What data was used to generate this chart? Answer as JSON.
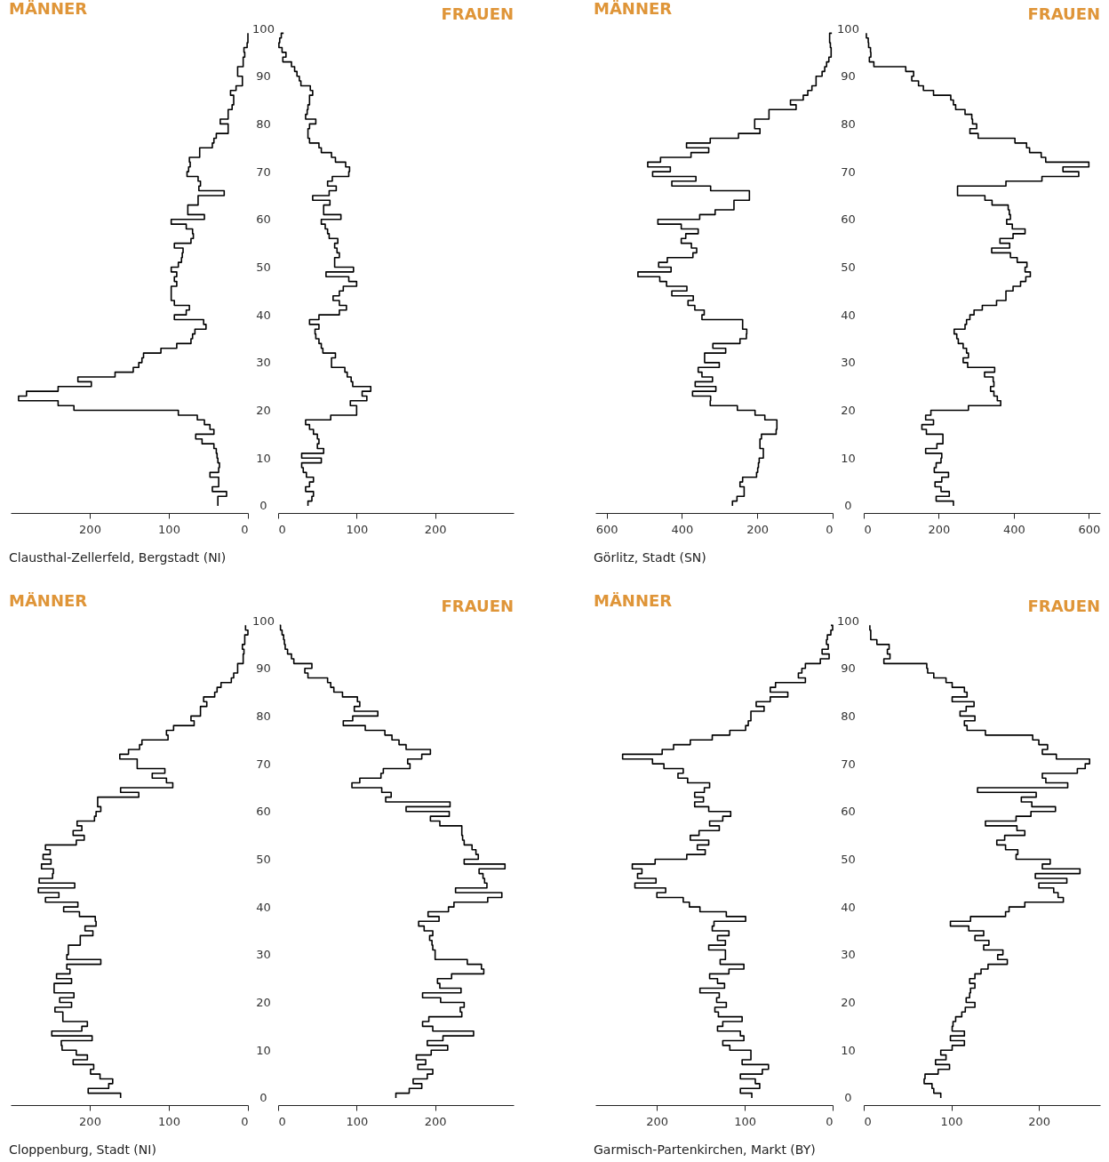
{
  "chart_data": [
    {
      "type": "step",
      "orientation": "horizontal",
      "title": "MÄNNER",
      "color": "#000000",
      "xlim": [
        300,
        0
      ],
      "xticks": [
        0,
        100,
        200
      ],
      "ylim": [
        -1.5,
        100
      ],
      "yticks": [
        0,
        10,
        20,
        30,
        40,
        50,
        60,
        70,
        80,
        90,
        100
      ],
      "annotations": [
        "Clausthal-Zellerfeld, Bergstadt (NI)"
      ],
      "x": [
        0,
        1,
        2,
        3,
        4,
        5,
        6,
        7,
        8,
        9,
        10,
        11,
        12,
        13,
        14,
        15,
        16,
        17,
        18,
        19,
        20,
        21,
        22,
        23,
        24,
        25,
        26,
        27,
        28,
        29,
        30,
        31,
        32,
        33,
        34,
        35,
        36,
        37,
        38,
        39,
        40,
        41,
        42,
        43,
        44,
        45,
        46,
        47,
        48,
        49,
        50,
        51,
        52,
        53,
        54,
        55,
        56,
        57,
        58,
        59,
        60,
        61,
        62,
        63,
        64,
        65,
        66,
        67,
        68,
        69,
        70,
        71,
        72,
        73,
        74,
        75,
        76,
        77,
        78,
        79,
        80,
        81,
        82,
        83,
        84,
        85,
        86,
        87,
        88,
        89,
        90,
        91,
        92,
        93,
        94,
        95,
        96,
        97,
        98,
        99
      ],
      "values": [
        38,
        38,
        27,
        45,
        37,
        37,
        48,
        37,
        36,
        38,
        39,
        40,
        43,
        58,
        66,
        43,
        48,
        55,
        64,
        88,
        220,
        240,
        290,
        280,
        240,
        198,
        215,
        168,
        145,
        138,
        134,
        132,
        110,
        90,
        72,
        70,
        67,
        53,
        56,
        93,
        78,
        74,
        93,
        97,
        97,
        97,
        90,
        93,
        90,
        97,
        88,
        84,
        83,
        82,
        93,
        72,
        69,
        70,
        78,
        97,
        55,
        76,
        76,
        63,
        63,
        30,
        62,
        60,
        63,
        77,
        75,
        73,
        74,
        61,
        61,
        45,
        43,
        40,
        25,
        25,
        35,
        25,
        25,
        20,
        18,
        18,
        22,
        15,
        7,
        7,
        13,
        13,
        6,
        6,
        4,
        5,
        1,
        0,
        0,
        0
      ]
    },
    {
      "type": "step",
      "orientation": "horizontal",
      "title": "FRAUEN",
      "color": "#000000",
      "xlim": [
        0,
        300
      ],
      "xticks": [
        0,
        100,
        200
      ],
      "ylim": [
        -1.5,
        100
      ],
      "tick_labels": "x",
      "x": [
        0,
        1,
        2,
        3,
        4,
        5,
        6,
        7,
        8,
        9,
        10,
        11,
        12,
        13,
        14,
        15,
        16,
        17,
        18,
        19,
        20,
        21,
        22,
        23,
        24,
        25,
        26,
        27,
        28,
        29,
        30,
        31,
        32,
        33,
        34,
        35,
        36,
        37,
        38,
        39,
        40,
        41,
        42,
        43,
        44,
        45,
        46,
        47,
        48,
        49,
        50,
        51,
        52,
        53,
        54,
        55,
        56,
        57,
        58,
        59,
        60,
        61,
        62,
        63,
        64,
        65,
        66,
        67,
        68,
        69,
        70,
        71,
        72,
        73,
        74,
        75,
        76,
        77,
        78,
        79,
        80,
        81,
        82,
        83,
        84,
        85,
        86,
        87,
        88,
        89,
        90,
        91,
        92,
        93,
        94,
        95,
        96,
        97,
        98,
        99
      ],
      "values": [
        38,
        43,
        45,
        35,
        40,
        45,
        36,
        32,
        30,
        55,
        30,
        58,
        50,
        52,
        50,
        45,
        40,
        35,
        67,
        100,
        100,
        92,
        113,
        107,
        118,
        95,
        93,
        88,
        85,
        68,
        68,
        73,
        57,
        55,
        52,
        48,
        47,
        52,
        40,
        52,
        78,
        87,
        78,
        70,
        78,
        83,
        100,
        90,
        61,
        96,
        72,
        72,
        78,
        75,
        72,
        76,
        65,
        63,
        60,
        55,
        80,
        58,
        58,
        66,
        44,
        65,
        74,
        63,
        69,
        90,
        91,
        86,
        73,
        68,
        55,
        52,
        40,
        38,
        38,
        40,
        48,
        35,
        37,
        38,
        40,
        40,
        44,
        41,
        29,
        27,
        24,
        21,
        17,
        6,
        10,
        5,
        1,
        2,
        4,
        7
      ]
    },
    {
      "type": "step",
      "orientation": "horizontal",
      "title": "MÄNNER",
      "color": "#000000",
      "xlim": [
        630,
        0
      ],
      "xticks": [
        0,
        200,
        400,
        600
      ],
      "ylim": [
        -1.5,
        100
      ],
      "yticks": [
        0,
        10,
        20,
        30,
        40,
        50,
        60,
        70,
        80,
        90,
        100
      ],
      "annotations": [
        "Görlitz, Stadt (SN)"
      ],
      "x": [
        0,
        1,
        2,
        3,
        4,
        5,
        6,
        7,
        8,
        9,
        10,
        11,
        12,
        13,
        14,
        15,
        16,
        17,
        18,
        19,
        20,
        21,
        22,
        23,
        24,
        25,
        26,
        27,
        28,
        29,
        30,
        31,
        32,
        33,
        34,
        35,
        36,
        37,
        38,
        39,
        40,
        41,
        42,
        43,
        44,
        45,
        46,
        47,
        48,
        49,
        50,
        51,
        52,
        53,
        54,
        55,
        56,
        57,
        58,
        59,
        60,
        61,
        62,
        63,
        64,
        65,
        66,
        67,
        68,
        69,
        70,
        71,
        72,
        73,
        74,
        75,
        76,
        77,
        78,
        79,
        80,
        81,
        82,
        83,
        84,
        85,
        86,
        87,
        88,
        89,
        90,
        91,
        92,
        93,
        94,
        95,
        96,
        97,
        98,
        99
      ],
      "values": [
        266,
        254,
        235,
        235,
        246,
        239,
        202,
        199,
        197,
        195,
        184,
        184,
        193,
        193,
        189,
        150,
        148,
        148,
        180,
        206,
        253,
        325,
        324,
        372,
        310,
        365,
        319,
        347,
        357,
        301,
        340,
        340,
        284,
        318,
        246,
        229,
        228,
        239,
        239,
        347,
        341,
        366,
        384,
        370,
        427,
        387,
        441,
        459,
        517,
        429,
        462,
        439,
        371,
        361,
        375,
        402,
        390,
        357,
        402,
        464,
        353,
        312,
        262,
        262,
        221,
        221,
        324,
        427,
        363,
        478,
        431,
        491,
        457,
        376,
        329,
        388,
        325,
        250,
        193,
        207,
        207,
        169,
        169,
        97,
        112,
        78,
        66,
        55,
        44,
        44,
        28,
        21,
        16,
        10,
        4,
        4,
        6,
        8,
        8,
        2
      ]
    },
    {
      "type": "step",
      "orientation": "horizontal",
      "title": "FRAUEN",
      "color": "#000000",
      "xlim": [
        0,
        630
      ],
      "xticks": [
        0,
        200,
        400,
        600
      ],
      "ylim": [
        -1.5,
        100
      ],
      "tick_labels": "x",
      "x": [
        0,
        1,
        2,
        3,
        4,
        5,
        6,
        7,
        8,
        9,
        10,
        11,
        12,
        13,
        14,
        15,
        16,
        17,
        18,
        19,
        20,
        21,
        22,
        23,
        24,
        25,
        26,
        27,
        28,
        29,
        30,
        31,
        32,
        33,
        34,
        35,
        36,
        37,
        38,
        39,
        40,
        41,
        42,
        43,
        44,
        45,
        46,
        47,
        48,
        49,
        50,
        51,
        52,
        53,
        54,
        55,
        56,
        57,
        58,
        59,
        60,
        61,
        62,
        63,
        64,
        65,
        66,
        67,
        68,
        69,
        70,
        71,
        72,
        73,
        74,
        75,
        76,
        77,
        78,
        79,
        80,
        81,
        82,
        83,
        84,
        85,
        86,
        87,
        88,
        89,
        90,
        91,
        92,
        93,
        94,
        95,
        96,
        97,
        98,
        99
      ],
      "values": [
        239,
        193,
        228,
        206,
        190,
        208,
        226,
        188,
        193,
        206,
        208,
        165,
        195,
        211,
        211,
        167,
        155,
        186,
        165,
        179,
        279,
        365,
        356,
        347,
        338,
        347,
        345,
        322,
        349,
        277,
        265,
        279,
        274,
        265,
        252,
        248,
        241,
        270,
        274,
        283,
        294,
        316,
        354,
        379,
        379,
        398,
        418,
        432,
        444,
        430,
        435,
        409,
        391,
        341,
        389,
        363,
        398,
        430,
        396,
        381,
        391,
        388,
        385,
        342,
        323,
        250,
        250,
        379,
        475,
        573,
        531,
        600,
        485,
        473,
        442,
        434,
        403,
        305,
        283,
        301,
        290,
        288,
        270,
        245,
        239,
        232,
        186,
        159,
        146,
        128,
        133,
        112,
        27,
        15,
        19,
        18,
        13,
        12,
        7,
        7
      ]
    },
    {
      "type": "step",
      "orientation": "horizontal",
      "title": "MÄNNER",
      "color": "#000000",
      "xlim": [
        300,
        0
      ],
      "xticks": [
        0,
        100,
        200
      ],
      "ylim": [
        -1.5,
        100
      ],
      "yticks": [
        0,
        10,
        20,
        30,
        40,
        50,
        60,
        70,
        80,
        90,
        100
      ],
      "annotations": [
        "Cloppenburg, Stadt (NI)"
      ],
      "x": [
        0,
        1,
        2,
        3,
        4,
        5,
        6,
        7,
        8,
        9,
        10,
        11,
        12,
        13,
        14,
        15,
        16,
        17,
        18,
        19,
        20,
        21,
        22,
        23,
        24,
        25,
        26,
        27,
        28,
        29,
        30,
        31,
        32,
        33,
        34,
        35,
        36,
        37,
        38,
        39,
        40,
        41,
        42,
        43,
        44,
        45,
        46,
        47,
        48,
        49,
        50,
        51,
        52,
        53,
        54,
        55,
        56,
        57,
        58,
        59,
        60,
        61,
        62,
        63,
        64,
        65,
        66,
        67,
        68,
        69,
        70,
        71,
        72,
        73,
        74,
        75,
        76,
        77,
        78,
        79,
        80,
        81,
        82,
        83,
        84,
        85,
        86,
        87,
        88,
        89,
        90,
        91,
        92,
        93,
        94,
        95,
        96,
        97,
        98,
        99
      ],
      "values": [
        161,
        202,
        176,
        171,
        187,
        199,
        195,
        221,
        203,
        217,
        235,
        236,
        197,
        248,
        210,
        203,
        234,
        234,
        244,
        223,
        238,
        220,
        245,
        245,
        223,
        242,
        225,
        229,
        186,
        229,
        227,
        227,
        212,
        212,
        196,
        206,
        192,
        193,
        213,
        233,
        215,
        256,
        239,
        265,
        219,
        264,
        247,
        246,
        261,
        249,
        259,
        250,
        256,
        217,
        207,
        221,
        210,
        216,
        194,
        192,
        186,
        190,
        190,
        138,
        161,
        95,
        103,
        121,
        105,
        140,
        140,
        162,
        151,
        137,
        134,
        101,
        103,
        94,
        68,
        72,
        60,
        60,
        52,
        56,
        42,
        39,
        34,
        21,
        18,
        13,
        13,
        6,
        6,
        5,
        7,
        4,
        4,
        0,
        3,
        3
      ]
    },
    {
      "type": "step",
      "orientation": "horizontal",
      "title": "FRAUEN",
      "color": "#000000",
      "xlim": [
        0,
        300
      ],
      "xticks": [
        0,
        100,
        200
      ],
      "ylim": [
        -1.5,
        100
      ],
      "tick_labels": "x",
      "x": [
        0,
        1,
        2,
        3,
        4,
        5,
        6,
        7,
        8,
        9,
        10,
        11,
        12,
        13,
        14,
        15,
        16,
        17,
        18,
        19,
        20,
        21,
        22,
        23,
        24,
        25,
        26,
        27,
        28,
        29,
        30,
        31,
        32,
        33,
        34,
        35,
        36,
        37,
        38,
        39,
        40,
        41,
        42,
        43,
        44,
        45,
        46,
        47,
        48,
        49,
        50,
        51,
        52,
        53,
        54,
        55,
        56,
        57,
        58,
        59,
        60,
        61,
        62,
        63,
        64,
        65,
        66,
        67,
        68,
        69,
        70,
        71,
        72,
        73,
        74,
        75,
        76,
        77,
        78,
        79,
        80,
        81,
        82,
        83,
        84,
        85,
        86,
        87,
        88,
        89,
        90,
        91,
        92,
        93,
        94,
        95,
        96,
        97,
        98,
        99
      ],
      "values": [
        150,
        167,
        183,
        172,
        190,
        197,
        178,
        188,
        176,
        195,
        216,
        190,
        210,
        249,
        197,
        184,
        192,
        234,
        232,
        237,
        207,
        184,
        233,
        206,
        203,
        221,
        262,
        259,
        241,
        200,
        200,
        197,
        196,
        193,
        197,
        186,
        179,
        205,
        191,
        217,
        224,
        267,
        285,
        226,
        266,
        263,
        261,
        256,
        289,
        237,
        255,
        252,
        247,
        237,
        235,
        234,
        234,
        206,
        194,
        218,
        163,
        219,
        137,
        144,
        132,
        94,
        104,
        131,
        134,
        168,
        165,
        183,
        194,
        163,
        154,
        145,
        136,
        111,
        83,
        95,
        127,
        97,
        104,
        101,
        82,
        71,
        67,
        63,
        38,
        34,
        43,
        20,
        17,
        12,
        9,
        8,
        7,
        5,
        3,
        2
      ]
    },
    {
      "type": "step",
      "orientation": "horizontal",
      "title": "MÄNNER",
      "color": "#000000",
      "xlim": [
        270,
        0
      ],
      "xticks": [
        0,
        100,
        200
      ],
      "ylim": [
        -1.5,
        100
      ],
      "yticks": [
        0,
        10,
        20,
        30,
        40,
        50,
        60,
        70,
        80,
        90,
        100
      ],
      "annotations": [
        "Garmisch-Partenkirchen, Markt (BY)"
      ],
      "x": [
        0,
        1,
        2,
        3,
        4,
        5,
        6,
        7,
        8,
        9,
        10,
        11,
        12,
        13,
        14,
        15,
        16,
        17,
        18,
        19,
        20,
        21,
        22,
        23,
        24,
        25,
        26,
        27,
        28,
        29,
        30,
        31,
        32,
        33,
        34,
        35,
        36,
        37,
        38,
        39,
        40,
        41,
        42,
        43,
        44,
        45,
        46,
        47,
        48,
        49,
        50,
        51,
        52,
        53,
        54,
        55,
        56,
        57,
        58,
        59,
        60,
        61,
        62,
        63,
        64,
        65,
        66,
        67,
        68,
        69,
        70,
        71,
        72,
        73,
        74,
        75,
        76,
        77,
        78,
        79,
        80,
        81,
        82,
        83,
        84,
        85,
        86,
        87,
        88,
        89,
        90,
        91,
        92,
        93,
        94,
        95,
        96,
        97,
        98,
        99
      ],
      "values": [
        92,
        105,
        83,
        88,
        105,
        80,
        73,
        103,
        93,
        93,
        117,
        125,
        101,
        105,
        131,
        125,
        103,
        130,
        134,
        121,
        132,
        129,
        151,
        123,
        131,
        140,
        118,
        101,
        128,
        122,
        122,
        141,
        122,
        131,
        118,
        137,
        135,
        99,
        121,
        151,
        163,
        170,
        200,
        190,
        225,
        201,
        222,
        217,
        228,
        202,
        166,
        145,
        154,
        141,
        162,
        152,
        129,
        140,
        125,
        116,
        141,
        157,
        147,
        157,
        146,
        140,
        165,
        176,
        170,
        192,
        205,
        239,
        194,
        181,
        162,
        137,
        117,
        99,
        96,
        93,
        93,
        78,
        87,
        71,
        51,
        71,
        65,
        31,
        39,
        35,
        31,
        14,
        4,
        12,
        5,
        7,
        6,
        2,
        0,
        2
      ]
    },
    {
      "type": "step",
      "orientation": "horizontal",
      "title": "FRAUEN",
      "color": "#000000",
      "xlim": [
        0,
        270
      ],
      "xticks": [
        0,
        100,
        200
      ],
      "ylim": [
        -1.5,
        100
      ],
      "tick_labels": "x",
      "x": [
        0,
        1,
        2,
        3,
        4,
        5,
        6,
        7,
        8,
        9,
        10,
        11,
        12,
        13,
        14,
        15,
        16,
        17,
        18,
        19,
        20,
        21,
        22,
        23,
        24,
        25,
        26,
        27,
        28,
        29,
        30,
        31,
        32,
        33,
        34,
        35,
        36,
        37,
        38,
        39,
        40,
        41,
        42,
        43,
        44,
        45,
        46,
        47,
        48,
        49,
        50,
        51,
        52,
        53,
        54,
        55,
        56,
        57,
        58,
        59,
        60,
        61,
        62,
        63,
        64,
        65,
        66,
        67,
        68,
        69,
        70,
        71,
        72,
        73,
        74,
        75,
        76,
        77,
        78,
        79,
        80,
        81,
        82,
        83,
        84,
        85,
        86,
        87,
        88,
        89,
        90,
        91,
        92,
        93,
        94,
        95,
        96,
        97,
        98,
        99
      ],
      "values": [
        88,
        80,
        78,
        69,
        70,
        85,
        98,
        82,
        94,
        88,
        101,
        115,
        99,
        115,
        101,
        102,
        105,
        112,
        116,
        127,
        117,
        121,
        122,
        127,
        121,
        127,
        134,
        142,
        164,
        153,
        159,
        137,
        143,
        127,
        137,
        120,
        99,
        122,
        162,
        166,
        184,
        228,
        222,
        217,
        200,
        232,
        196,
        247,
        204,
        213,
        174,
        176,
        162,
        152,
        161,
        184,
        175,
        139,
        174,
        191,
        219,
        192,
        180,
        197,
        130,
        233,
        208,
        204,
        244,
        253,
        258,
        220,
        204,
        210,
        200,
        193,
        139,
        118,
        115,
        127,
        110,
        117,
        126,
        101,
        118,
        115,
        101,
        94,
        80,
        73,
        72,
        23,
        30,
        27,
        29,
        15,
        8,
        8,
        7,
        7
      ]
    }
  ]
}
